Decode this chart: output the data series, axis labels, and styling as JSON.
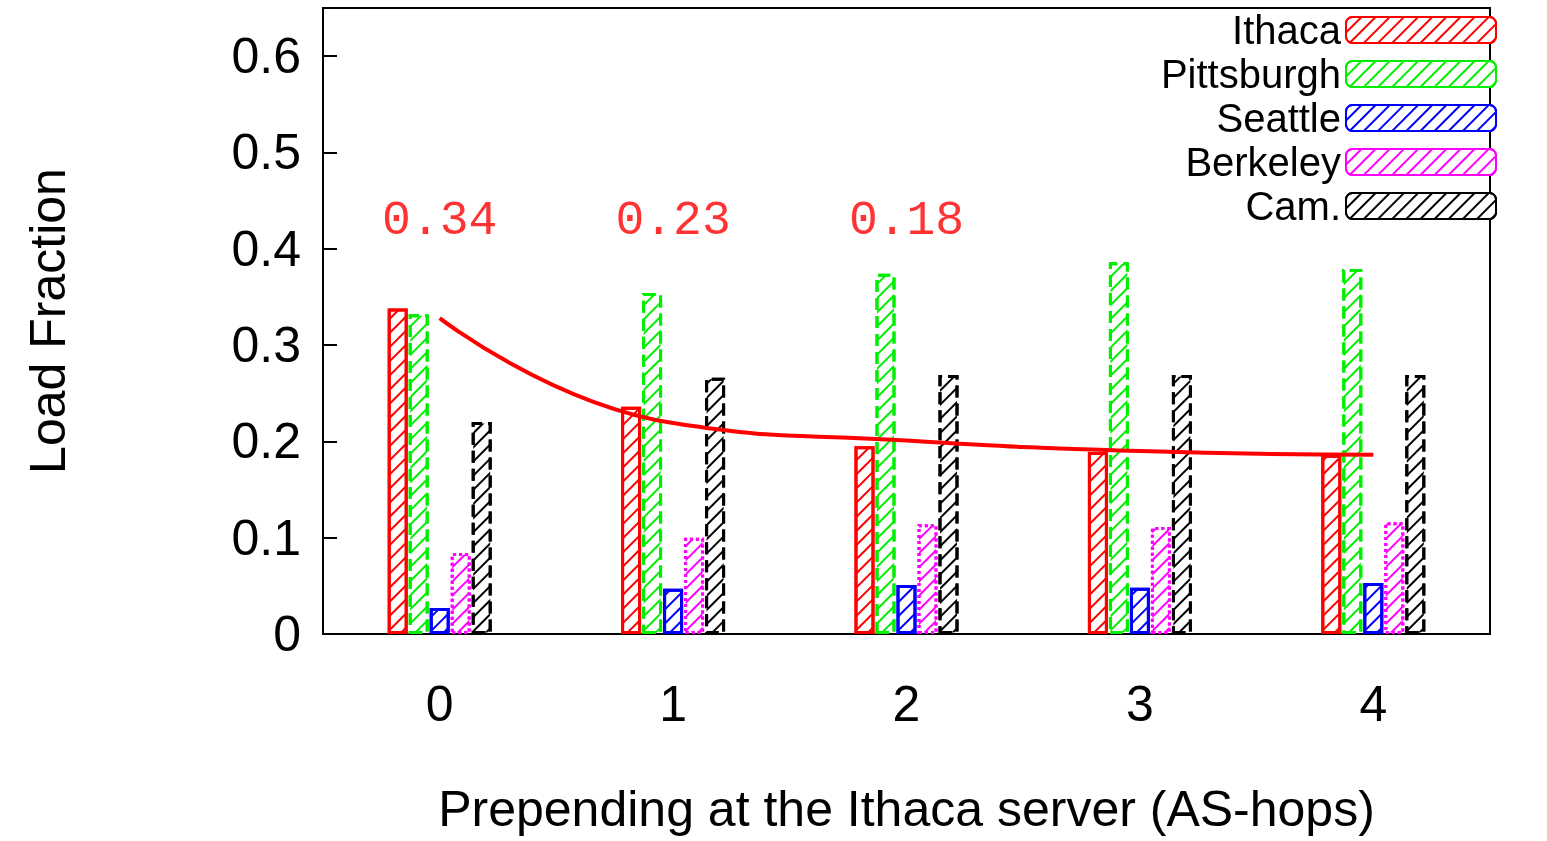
{
  "chart_data": {
    "type": "bar",
    "xlabel": "Prepending at the Ithaca server (AS-hops)",
    "ylabel": "Load Fraction",
    "categories": [
      "0",
      "1",
      "2",
      "3",
      "4"
    ],
    "series": [
      {
        "name": "Ithaca",
        "color": "#ff0000",
        "values": [
          0.338,
          0.236,
          0.195,
          0.189,
          0.186
        ]
      },
      {
        "name": "Pittsburgh",
        "color": "#00ee00",
        "values": [
          0.332,
          0.354,
          0.374,
          0.386,
          0.379
        ]
      },
      {
        "name": "Seattle",
        "color": "#0000ff",
        "values": [
          0.027,
          0.047,
          0.051,
          0.048,
          0.053
        ]
      },
      {
        "name": "Berkeley",
        "color": "#ff00ff",
        "values": [
          0.084,
          0.1,
          0.114,
          0.111,
          0.116
        ]
      },
      {
        "name": "Cam.",
        "color": "#000000",
        "values": [
          0.22,
          0.266,
          0.269,
          0.269,
          0.269
        ]
      },
      {
        "type": "line",
        "color": "#ff0000",
        "values": [
          0.328,
          0.219,
          0.201,
          0.19,
          0.186
        ]
      }
    ],
    "ylim": [
      0,
      0.65
    ],
    "yticks": [
      0,
      0.1,
      0.2,
      0.3,
      0.4,
      0.5,
      0.6
    ],
    "annotations": [
      "0.34",
      "0.23",
      "0.18"
    ],
    "legend": "top right",
    "grid": false,
    "marker": "none"
  }
}
